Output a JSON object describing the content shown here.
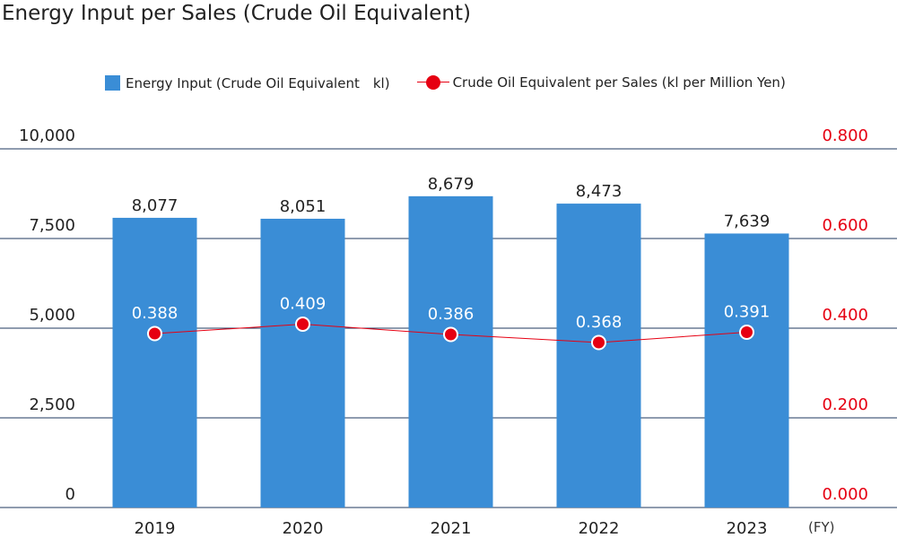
{
  "title": "Energy Input per Sales (Crude Oil Equivalent)",
  "legend": {
    "bar_label": "Energy Input (Crude Oil Equivalent　kl)",
    "line_label": "Crude Oil Equivalent per Sales (kl per Million Yen)"
  },
  "colors": {
    "bar": "#3a8dd6",
    "line": "#e60012",
    "right_axis_text": "#e60012",
    "gridline": "#1f3a5f"
  },
  "chart_data": {
    "type": "bar",
    "title": "Energy Input per Sales (Crude Oil Equivalent)",
    "categories": [
      "2019",
      "2020",
      "2021",
      "2022",
      "2023"
    ],
    "x_unit": "(FY)",
    "series": [
      {
        "name": "Energy Input (Crude Oil Equivalent　kl)",
        "type": "bar",
        "axis": "left",
        "values": [
          8077,
          8051,
          8679,
          8473,
          7639
        ],
        "labels": [
          "8,077",
          "8,051",
          "8,679",
          "8,473",
          "7,639"
        ]
      },
      {
        "name": "Crude Oil Equivalent per Sales (kl per Million Yen)",
        "type": "line",
        "axis": "right",
        "values": [
          0.388,
          0.409,
          0.386,
          0.368,
          0.391
        ],
        "labels": [
          "0.388",
          "0.409",
          "0.386",
          "0.368",
          "0.391"
        ]
      }
    ],
    "y_left": {
      "min": 0,
      "max": 10000,
      "ticks": [
        0,
        2500,
        5000,
        7500,
        10000
      ],
      "tick_labels": [
        "0",
        "2,500",
        "5,000",
        "7,500",
        "10,000"
      ]
    },
    "y_right": {
      "min": 0,
      "max": 0.8,
      "ticks": [
        0,
        0.2,
        0.4,
        0.6,
        0.8
      ],
      "tick_labels": [
        "0.000",
        "0.200",
        "0.400",
        "0.600",
        "0.800"
      ]
    },
    "grid": true,
    "legend_position": "top"
  }
}
